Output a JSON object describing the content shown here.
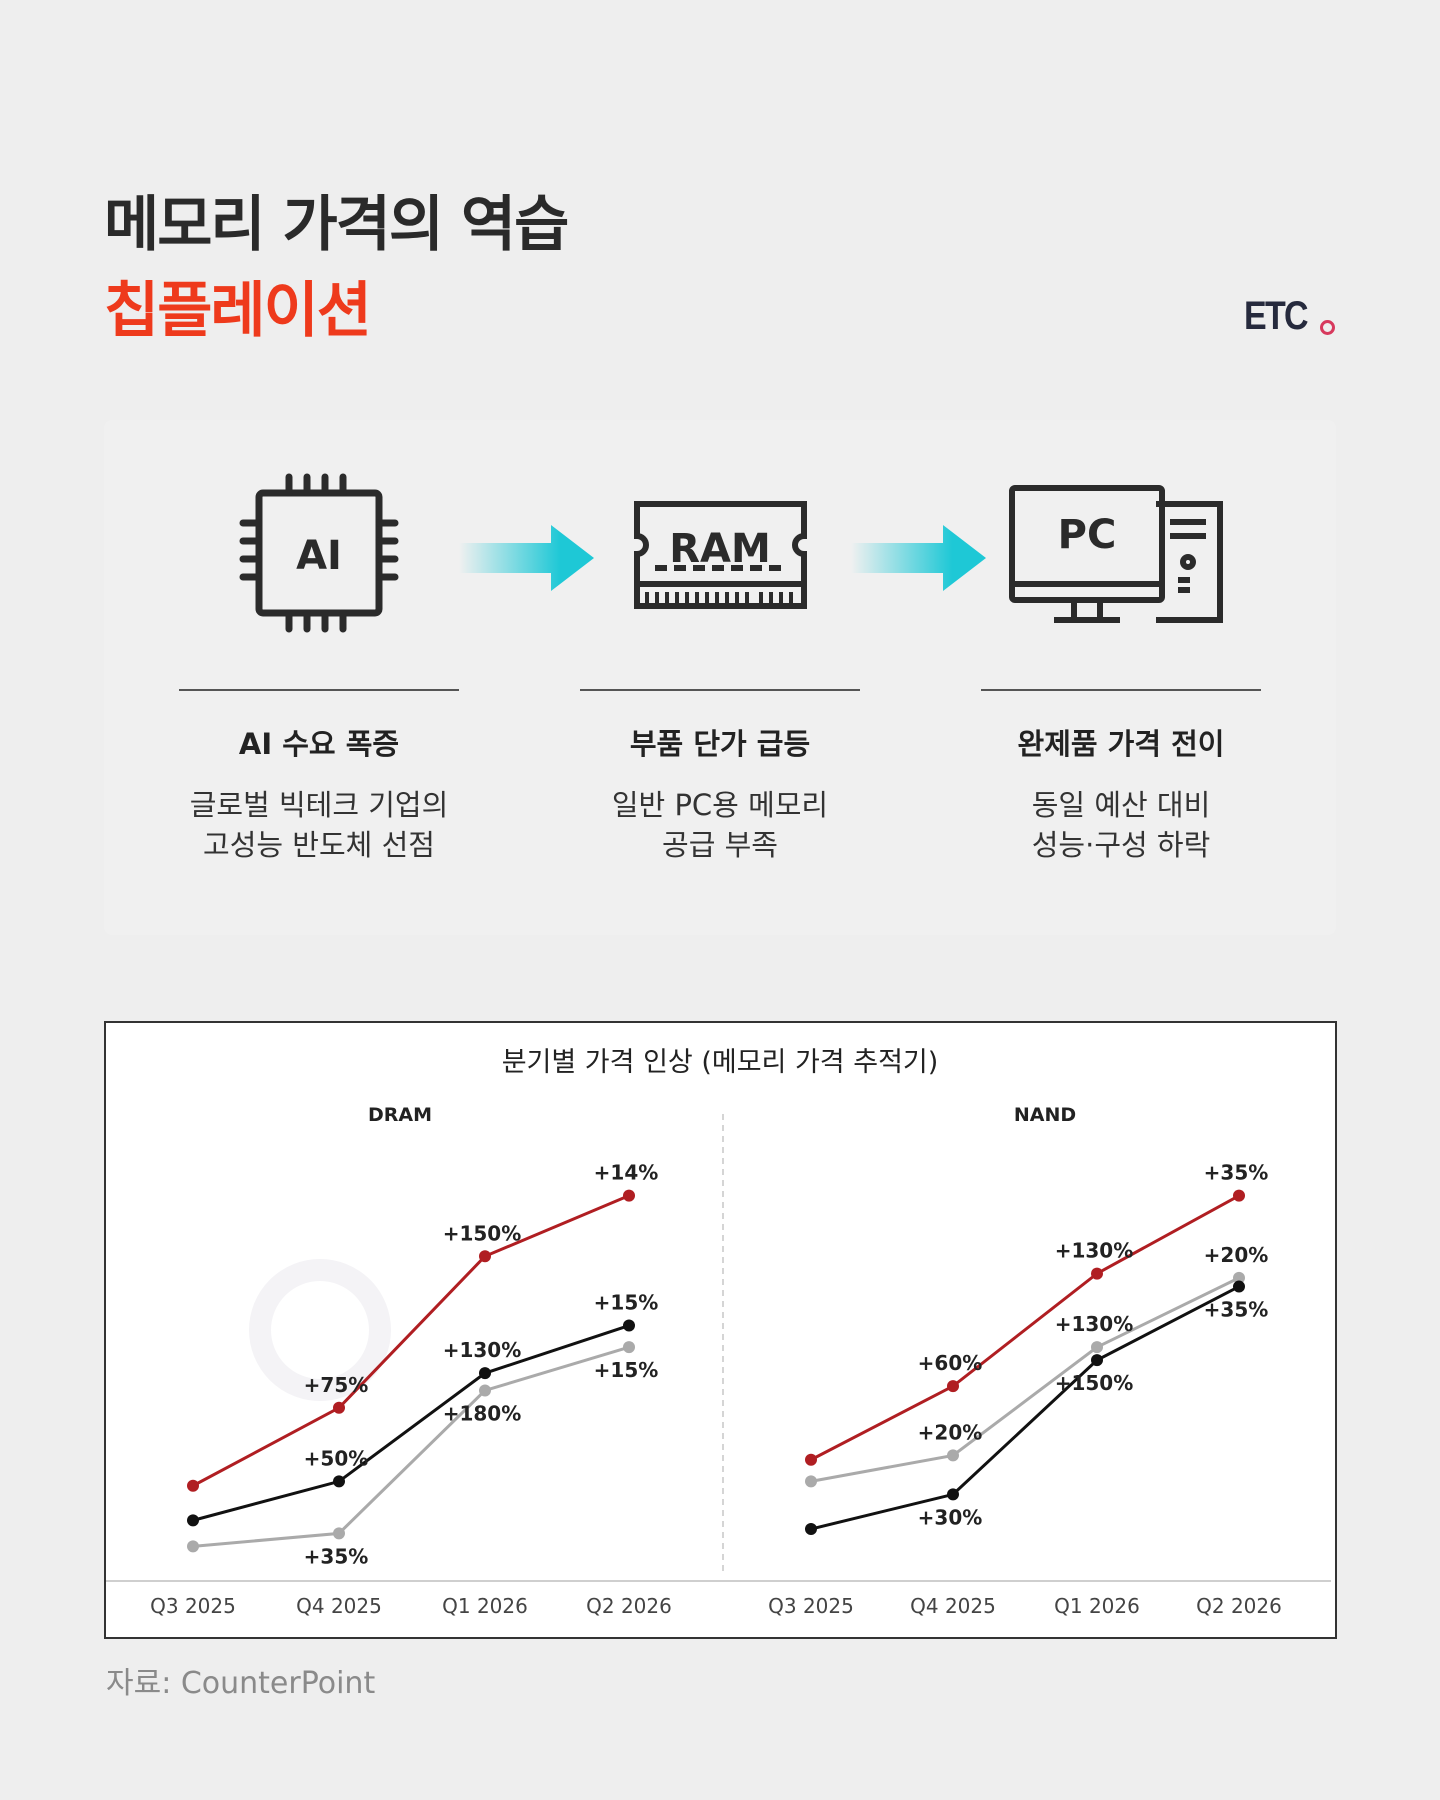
{
  "header": {
    "title": "메모리 가격의 역습",
    "subtitle": "칩플레이션",
    "logo_text": "ETC"
  },
  "flow": {
    "steps": [
      {
        "icon": "ai-chip-icon",
        "icon_text": "AI",
        "heading": "AI 수요 폭증",
        "lines": [
          "글로벌 빅테크 기업의",
          "고성능 반도체 선점"
        ]
      },
      {
        "icon": "ram-module-icon",
        "icon_text": "RAM",
        "heading": "부품 단가 급등",
        "lines": [
          "일반 PC용 메모리",
          "공급 부족"
        ]
      },
      {
        "icon": "pc-computer-icon",
        "icon_text": "PC",
        "heading": "완제품 가격 전이",
        "lines": [
          "동일 예산 대비",
          "성능·구성 하락"
        ]
      }
    ],
    "arrow_color": "#1ec8d6"
  },
  "chart_data": {
    "type": "line",
    "title": "분기별 가격 인상 (메모리 가격 추적기)",
    "watermark": "Counterpoint",
    "categories": [
      "Q3 2025",
      "Q4 2025",
      "Q1 2026",
      "Q2 2026"
    ],
    "ylim": [
      0,
      100
    ],
    "grid": false,
    "legend": "none",
    "panels": [
      {
        "name": "DRAM",
        "series": [
          {
            "color": "#b01e22",
            "values": [
              22,
              40,
              75,
              89
            ],
            "labels": [
              "",
              "+75%",
              "+150%",
              "+14%"
            ],
            "label_pos": [
              "",
              "above",
              "above",
              "above"
            ]
          },
          {
            "color": "#111111",
            "values": [
              14,
              23,
              48,
              59
            ],
            "labels": [
              "",
              "+50%",
              "+130%",
              "+15%"
            ],
            "label_pos": [
              "",
              "above",
              "above",
              "above"
            ]
          },
          {
            "color": "#aaaaaa",
            "values": [
              8,
              11,
              44,
              54
            ],
            "labels": [
              "",
              "+35%",
              "+180%",
              "+15%"
            ],
            "label_pos": [
              "",
              "below",
              "below",
              "below"
            ]
          }
        ]
      },
      {
        "name": "NAND",
        "series": [
          {
            "color": "#b01e22",
            "values": [
              28,
              45,
              71,
              89
            ],
            "labels": [
              "",
              "+60%",
              "+130%",
              "+35%"
            ],
            "label_pos": [
              "",
              "above",
              "above",
              "above"
            ]
          },
          {
            "color": "#aaaaaa",
            "values": [
              23,
              29,
              54,
              70
            ],
            "labels": [
              "",
              "+20%",
              "+130%",
              "+20%"
            ],
            "label_pos": [
              "",
              "above",
              "above",
              "above"
            ]
          },
          {
            "color": "#111111",
            "values": [
              12,
              20,
              51,
              68
            ],
            "labels": [
              "",
              "+30%",
              "+150%",
              "+35%"
            ],
            "label_pos": [
              "",
              "below",
              "below",
              "below"
            ]
          }
        ]
      }
    ]
  },
  "footer": {
    "source": "자료: CounterPoint"
  }
}
